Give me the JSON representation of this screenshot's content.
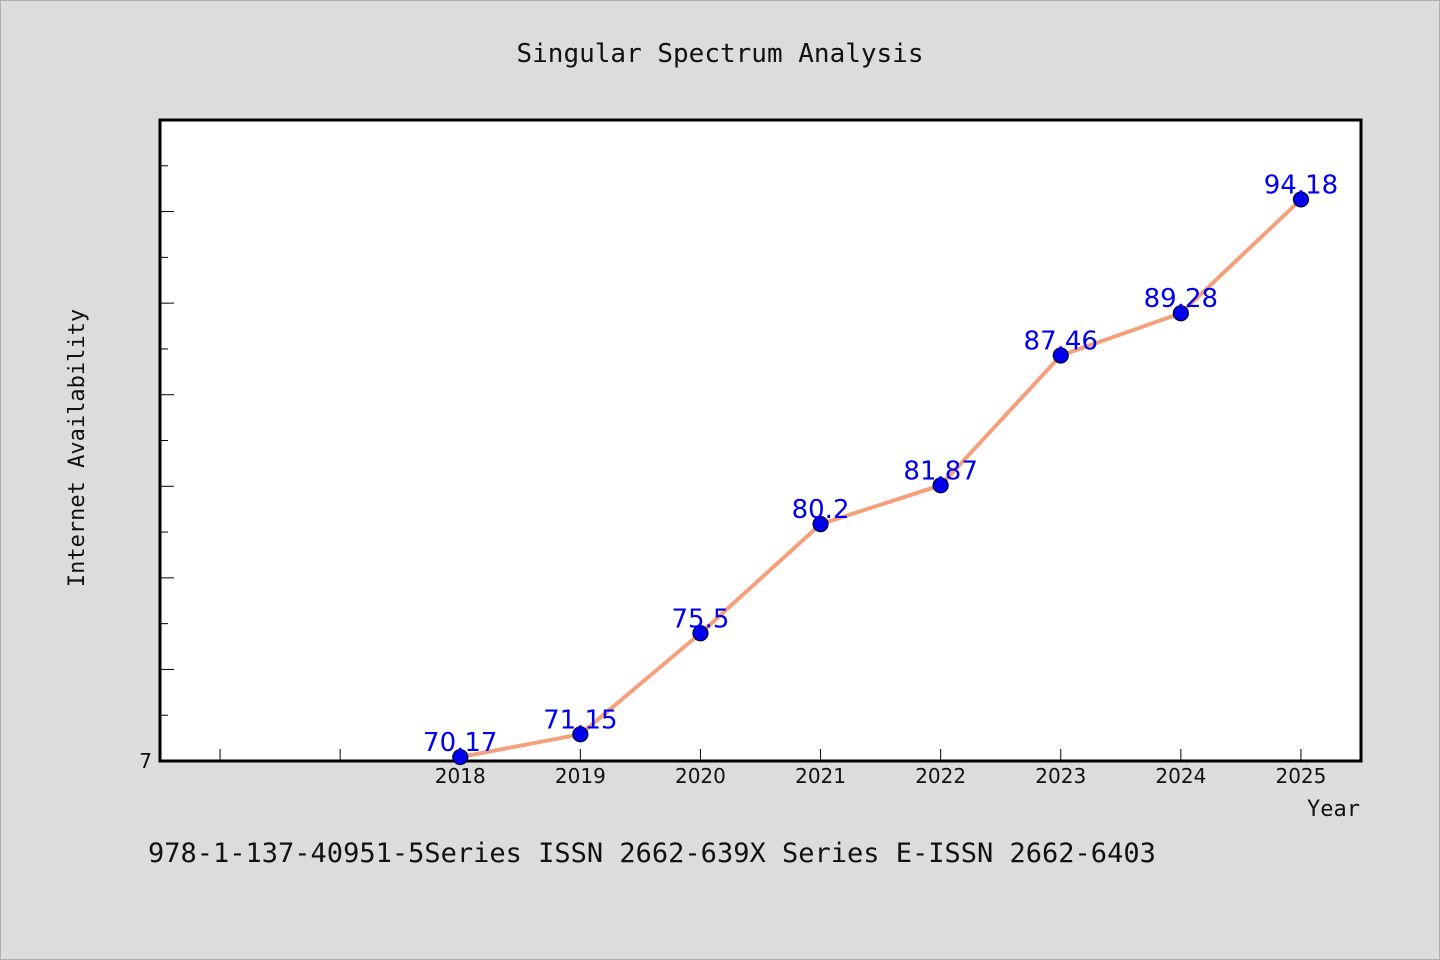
{
  "chart_data": {
    "type": "line",
    "title": "Singular Spectrum Analysis",
    "xlabel": "Year",
    "ylabel": "Internet Availability",
    "categories": [
      "2018",
      "2019",
      "2020",
      "2021",
      "2022",
      "2023",
      "2024",
      "2025"
    ],
    "series": [
      {
        "values": [
          70.17,
          71.15,
          75.5,
          80.2,
          81.87,
          87.46,
          89.28,
          94.18
        ],
        "labels": [
          "70.17",
          "71.15",
          "75.5",
          "80.2",
          "81.87",
          "87.46",
          "89.28",
          "94.18"
        ]
      }
    ],
    "x_range": [
      2015.5,
      2025.5
    ],
    "ylim": [
      70,
      97.6
    ],
    "y_tick_label": "7",
    "grid": false,
    "legend": "none",
    "colors": {
      "line": "#f4a07c",
      "marker": "#0000ee",
      "label": "#0000ee",
      "plot_bg": "#ffffff",
      "page_bg": "#dcdcdc"
    }
  },
  "footer": {
    "text": "978-1-137-40951-5Series ISSN 2662-639X Series E-ISSN 2662-6403"
  }
}
